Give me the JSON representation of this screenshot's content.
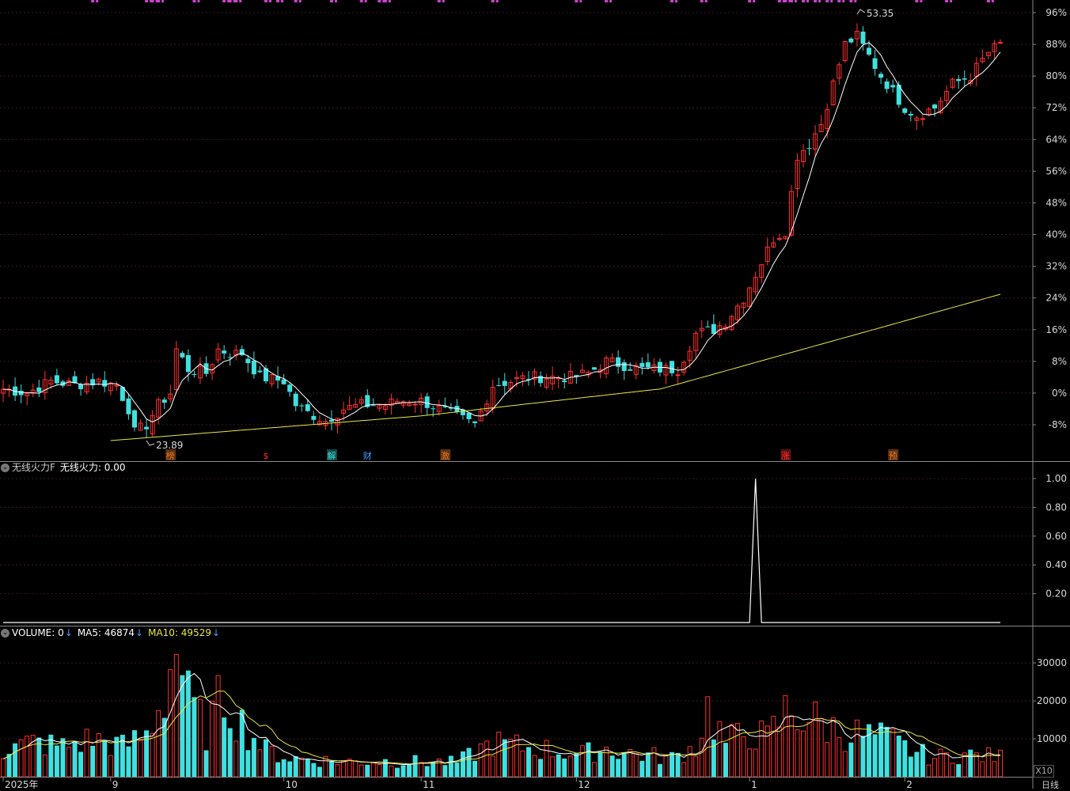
{
  "price_panel": {
    "y_ticks": [
      "96%",
      "88%",
      "80%",
      "72%",
      "64%",
      "56%",
      "48%",
      "40%",
      "32%",
      "24%",
      "16%",
      "8%",
      "0%",
      "-8%"
    ],
    "high_label": "53.35",
    "low_label": "23.89",
    "events": [
      {
        "text": "榜",
        "color": "#e87820",
        "bg": "#5a3010",
        "idx": 28
      },
      {
        "text": "$",
        "color": "#ff3030",
        "bg": "#000000",
        "idx": 44
      },
      {
        "text": "解",
        "color": "#40e0e0",
        "bg": "#104848",
        "idx": 55
      },
      {
        "text": "财",
        "color": "#40a0ff",
        "bg": "#000000",
        "idx": 61
      },
      {
        "text": "激",
        "color": "#e87820",
        "bg": "#5a3010",
        "idx": 74
      },
      {
        "text": "涨",
        "color": "#ff3030",
        "bg": "#5a1010",
        "idx": 131
      },
      {
        "text": "预",
        "color": "#e87820",
        "bg": "#5a3010",
        "idx": 149
      }
    ]
  },
  "indicator_panel": {
    "name": "无线火力F",
    "value_label": "无线火力: 0.00",
    "y_ticks": [
      "1.00",
      "0.80",
      "0.60",
      "0.40",
      "0.20"
    ]
  },
  "volume_panel": {
    "label": "VOLUME: 0",
    "ma5_label": "MA5: 46874",
    "ma10_label": "MA10: 49529",
    "y_ticks": [
      "30000",
      "20000",
      "10000"
    ],
    "scale_label": "X10"
  },
  "x_axis": {
    "labels": [
      {
        "text": "2025年",
        "idx": 0
      },
      {
        "text": "9",
        "idx": 18
      },
      {
        "text": "10",
        "idx": 47
      },
      {
        "text": "11",
        "idx": 70
      },
      {
        "text": "12",
        "idx": 96
      },
      {
        "text": "1",
        "idx": 125
      },
      {
        "text": "2",
        "idx": 151
      }
    ],
    "period": "日线"
  },
  "chart_data": [
    {
      "type": "candlestick",
      "title": "",
      "y_unit": "percent change",
      "ylim": [
        -12,
        100
      ],
      "high_value": 53.35,
      "low_value": 23.89,
      "colors": {
        "up": "#ff3030",
        "down": "#40e0e0",
        "ma_short": "#ffffff",
        "ma_long": "#e8e840"
      },
      "x_count": 168,
      "keypoints": [
        [
          0,
          1
        ],
        [
          4,
          0
        ],
        [
          8,
          3
        ],
        [
          12,
          2
        ],
        [
          16,
          3
        ],
        [
          19,
          2
        ],
        [
          21,
          -4
        ],
        [
          22,
          -10
        ],
        [
          24,
          -8
        ],
        [
          26,
          -3
        ],
        [
          28,
          0
        ],
        [
          29,
          11
        ],
        [
          31,
          6
        ],
        [
          34,
          5
        ],
        [
          36,
          11
        ],
        [
          38,
          10
        ],
        [
          40,
          10
        ],
        [
          43,
          4
        ],
        [
          47,
          3
        ],
        [
          49,
          -3
        ],
        [
          51,
          -5
        ],
        [
          54,
          -7
        ],
        [
          57,
          -4
        ],
        [
          60,
          -3
        ],
        [
          64,
          -3
        ],
        [
          66,
          -2
        ],
        [
          70,
          -2
        ],
        [
          73,
          -4
        ],
        [
          76,
          -6
        ],
        [
          79,
          -8
        ],
        [
          82,
          2
        ],
        [
          85,
          3
        ],
        [
          88,
          4
        ],
        [
          91,
          4
        ],
        [
          95,
          4
        ],
        [
          98,
          5
        ],
        [
          101,
          8
        ],
        [
          104,
          7
        ],
        [
          107,
          6
        ],
        [
          110,
          6
        ],
        [
          113,
          6
        ],
        [
          116,
          15
        ],
        [
          119,
          16
        ],
        [
          121,
          18
        ],
        [
          124,
          24
        ],
        [
          126,
          30
        ],
        [
          129,
          39
        ],
        [
          131,
          41
        ],
        [
          133,
          60
        ],
        [
          135,
          63
        ],
        [
          137,
          68
        ],
        [
          139,
          78
        ],
        [
          141,
          88
        ],
        [
          143,
          90
        ],
        [
          145,
          85
        ],
        [
          147,
          80
        ],
        [
          149,
          76
        ],
        [
          151,
          72
        ],
        [
          153,
          70
        ],
        [
          156,
          72
        ],
        [
          159,
          78
        ],
        [
          162,
          80
        ],
        [
          165,
          86
        ],
        [
          168,
          89
        ]
      ],
      "ma_short_note": "short moving average (white)",
      "ma_long_note": "long moving average (yellow)"
    },
    {
      "type": "line",
      "title": "无线火力F",
      "ylim": [
        0,
        1.05
      ],
      "values_note": "flat 0 except a single spike to 1.00",
      "spike_idx": 126,
      "spike_value": 1.0
    },
    {
      "type": "bar",
      "title": "VOLUME",
      "ylim": [
        0,
        38000
      ],
      "ma5": 46874,
      "ma10": 49529,
      "volume_keypoints": [
        [
          0,
          7000
        ],
        [
          5,
          9000
        ],
        [
          10,
          8000
        ],
        [
          15,
          10000
        ],
        [
          20,
          8000
        ],
        [
          24,
          11000
        ],
        [
          27,
          22000
        ],
        [
          29,
          35000
        ],
        [
          31,
          20000
        ],
        [
          34,
          12000
        ],
        [
          37,
          22000
        ],
        [
          40,
          14000
        ],
        [
          44,
          7000
        ],
        [
          48,
          5000
        ],
        [
          52,
          4500
        ],
        [
          58,
          4000
        ],
        [
          64,
          4200
        ],
        [
          70,
          4000
        ],
        [
          76,
          3800
        ],
        [
          82,
          9000
        ],
        [
          86,
          8000
        ],
        [
          92,
          7000
        ],
        [
          97,
          6000
        ],
        [
          101,
          7500
        ],
        [
          106,
          6000
        ],
        [
          112,
          5000
        ],
        [
          116,
          8000
        ],
        [
          118,
          18000
        ],
        [
          121,
          9000
        ],
        [
          125,
          12000
        ],
        [
          128,
          10000
        ],
        [
          131,
          17000
        ],
        [
          134,
          16000
        ],
        [
          137,
          14000
        ],
        [
          140,
          12000
        ],
        [
          144,
          11000
        ],
        [
          148,
          10000
        ],
        [
          152,
          7000
        ],
        [
          156,
          5000
        ],
        [
          160,
          6000
        ],
        [
          164,
          5500
        ],
        [
          168,
          5000
        ]
      ]
    }
  ]
}
